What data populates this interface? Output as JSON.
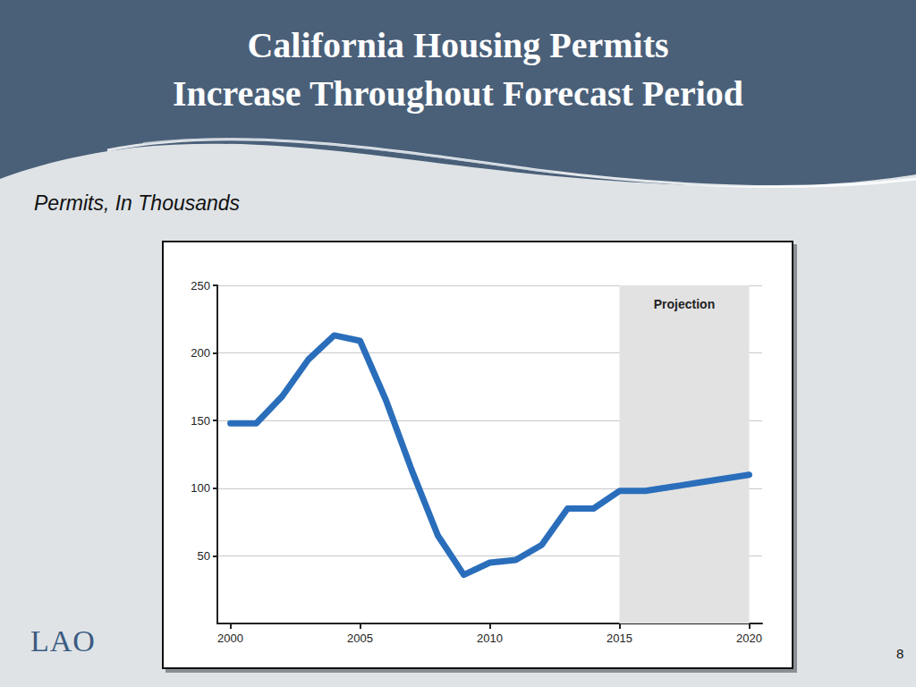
{
  "chart_data": {
    "type": "line",
    "title": "California Housing Permits\nIncrease Throughout Forecast Period",
    "subtitle": "Permits, In Thousands",
    "x": [
      2000,
      2001,
      2002,
      2003,
      2004,
      2005,
      2006,
      2007,
      2008,
      2009,
      2010,
      2011,
      2012,
      2013,
      2014,
      2015,
      2016,
      2017,
      2018,
      2019,
      2020
    ],
    "values": [
      148,
      148,
      168,
      195,
      213,
      209,
      165,
      113,
      65,
      36,
      45,
      47,
      58,
      85,
      85,
      98,
      98,
      101,
      104,
      107,
      110
    ],
    "color": "#2a6ebb",
    "xlim": [
      1999.5,
      2020.5
    ],
    "xticks": [
      2000,
      2005,
      2010,
      2015,
      2020
    ],
    "ylim": [
      0,
      250
    ],
    "yticks": [
      50,
      100,
      150,
      200,
      250
    ],
    "grid": true,
    "annotations": [
      {
        "text": "Projection",
        "x_start": 2015,
        "x_end": 2020
      }
    ]
  },
  "slide": {
    "logo": "LAO",
    "page": 8
  }
}
